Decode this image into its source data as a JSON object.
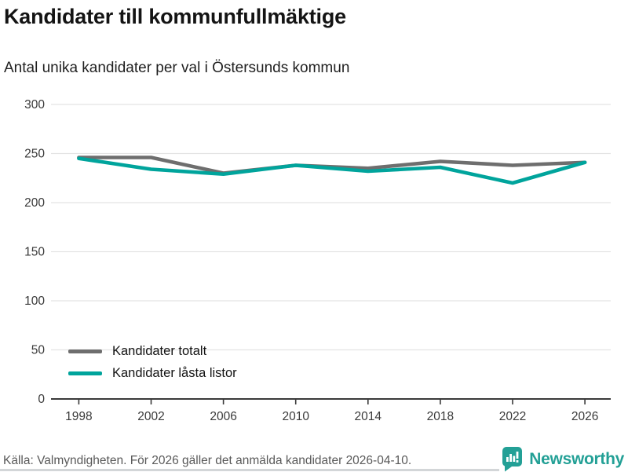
{
  "header": {
    "title": "Kandidater till kommunfullmäktige",
    "subtitle": "Antal unika kandidater per val i Östersunds kommun"
  },
  "chart_data": {
    "type": "line",
    "x": [
      1998,
      2002,
      2006,
      2010,
      2014,
      2018,
      2022,
      2026
    ],
    "series": [
      {
        "name": "Kandidater totalt",
        "color": "#6e6e6e",
        "values": [
          246,
          246,
          230,
          238,
          235,
          242,
          238,
          241
        ]
      },
      {
        "name": "Kandidater låsta listor",
        "color": "#00a49c",
        "values": [
          245,
          234,
          229,
          238,
          232,
          236,
          220,
          241
        ]
      }
    ],
    "title": "Kandidater till kommunfullmäktige",
    "subtitle": "Antal unika kandidater per val i Östersunds kommun",
    "xlabel": "",
    "ylabel": "",
    "ylim": [
      0,
      300
    ],
    "yticks": [
      0,
      50,
      100,
      150,
      200,
      250,
      300
    ],
    "grid": "horizontal",
    "legend_position": "inside-bottom-left",
    "colors": {
      "gridline": "#e3e3e3",
      "axis": "#3a3a3a",
      "tick_label": "#3a3a3a"
    }
  },
  "footer": {
    "source": "Källa: Valmyndigheten. För 2026 gäller det anmälda kandidater 2026-04-10.",
    "brand": "Newsworthy",
    "brand_color": "#23a096"
  }
}
